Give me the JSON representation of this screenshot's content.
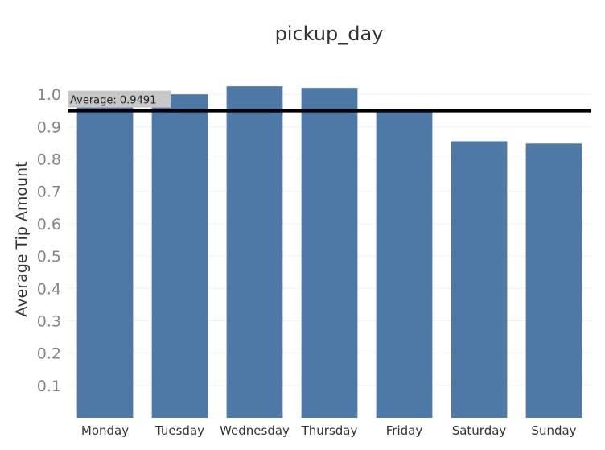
{
  "chart_data": {
    "type": "bar",
    "title": "pickup_day",
    "xlabel": "",
    "ylabel": "Average Tip Amount",
    "categories": [
      "Monday",
      "Tuesday",
      "Wednesday",
      "Thursday",
      "Friday",
      "Saturday",
      "Sunday"
    ],
    "values": [
      0.97,
      1.0,
      1.025,
      1.02,
      0.95,
      0.855,
      0.848
    ],
    "ylim": [
      0,
      1.1
    ],
    "yticks": [
      "0.1",
      "0.2",
      "0.3",
      "0.4",
      "0.5",
      "0.6",
      "0.7",
      "0.8",
      "0.9",
      "1.0"
    ],
    "reference_line": {
      "value": 0.9491,
      "label": "Average: 0.9491"
    },
    "colors": {
      "bar": "#4e79a7",
      "reference_line": "#000000",
      "reference_label_bg": "#c8c8c8",
      "gridline": "#f0f0f0"
    },
    "grid": true,
    "legend": "none"
  }
}
